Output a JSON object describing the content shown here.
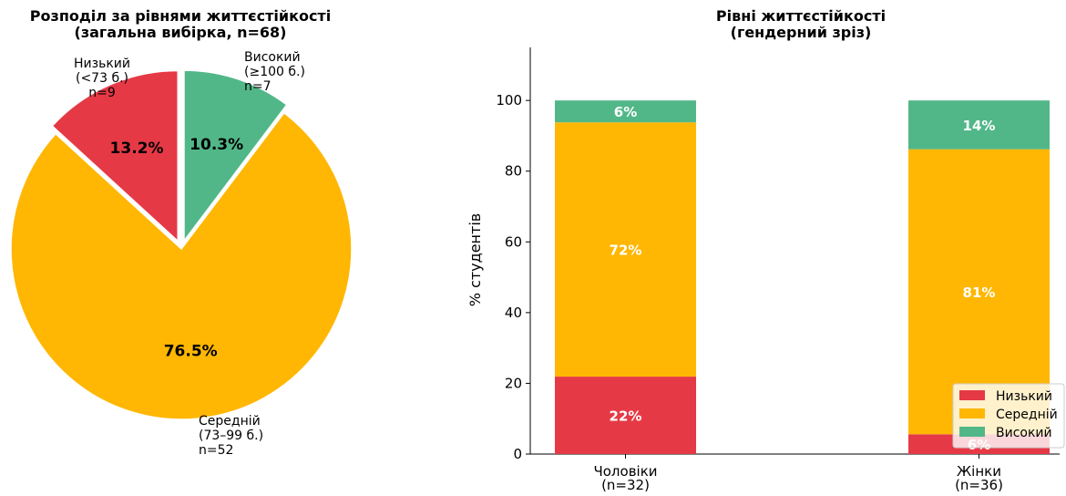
{
  "colors": {
    "low": "#e63946",
    "mid": "#ffb703",
    "high": "#52b788"
  },
  "chart_data": [
    {
      "type": "pie",
      "title_lines": [
        "Розподіл за рівнями життєстійкості",
        "(загальна вибірка, n=68)"
      ],
      "slices": [
        {
          "key": "low",
          "label_lines": [
            "Низький",
            "(<73 б.)",
            "n=9"
          ],
          "count": 9,
          "percent": 13.2,
          "pct_label": "13.2%",
          "exploded": true,
          "color": "#e63946"
        },
        {
          "key": "mid",
          "label_lines": [
            "Середній",
            "(73–99 б.)",
            "n=52"
          ],
          "count": 52,
          "percent": 76.5,
          "pct_label": "76.5%",
          "exploded": false,
          "color": "#ffb703"
        },
        {
          "key": "high",
          "label_lines": [
            "Високий",
            "(≥100 б.)",
            "n=7"
          ],
          "count": 7,
          "percent": 10.3,
          "pct_label": "10.3%",
          "exploded": true,
          "color": "#52b788"
        }
      ]
    },
    {
      "type": "bar",
      "stacked": true,
      "title_lines": [
        "Рівні життєстійкості",
        "(гендерний зріз)"
      ],
      "ylabel": "% студентів",
      "ylim": [
        0,
        115
      ],
      "yticks": [
        0,
        20,
        40,
        60,
        80,
        100
      ],
      "categories": [
        {
          "lines": [
            "Чоловіки",
            "(n=32)"
          ]
        },
        {
          "lines": [
            "Жінки",
            "(n=36)"
          ]
        }
      ],
      "series": [
        {
          "name": "Низький",
          "color": "#e63946",
          "values": [
            21.9,
            5.6
          ],
          "labels": [
            "22%",
            "6%"
          ]
        },
        {
          "name": "Середній",
          "color": "#ffb703",
          "values": [
            71.9,
            80.6
          ],
          "labels": [
            "72%",
            "81%"
          ]
        },
        {
          "name": "Високий",
          "color": "#52b788",
          "values": [
            6.2,
            13.8
          ],
          "labels": [
            "6%",
            "14%"
          ]
        }
      ],
      "legend_position": "lower-right"
    }
  ]
}
